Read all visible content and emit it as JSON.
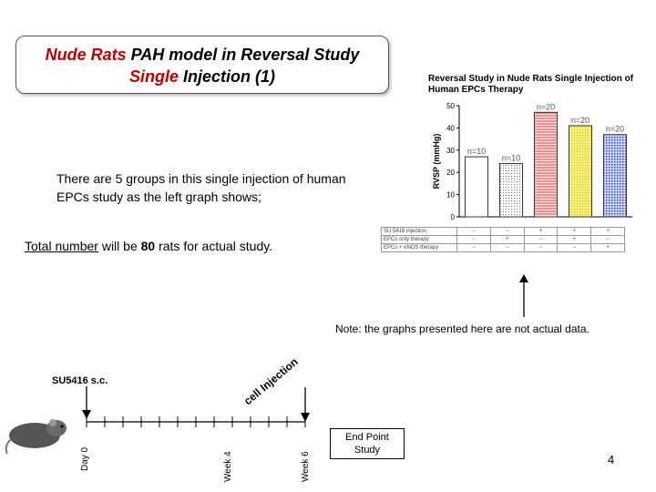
{
  "title": {
    "line1_red": "Nude Rats",
    "line1_rest": " PAH model in Reversal Study",
    "line2_red": "Single",
    "line2_rest": " Injection (1)"
  },
  "intro_text": "There are 5 groups in this single injection of human EPCs study as the left graph shows;",
  "total": {
    "underlined": "Total number",
    "middle": " will be ",
    "number": "80",
    "rest": " rats for actual study."
  },
  "note": "Note: the graphs presented here are not actual data.",
  "timeline": {
    "su_label": "SU5416 s.c.",
    "cell_injection": "cell Injection",
    "day0": "Day 0",
    "week4": "Week 4",
    "week6": "Week 6",
    "endpoint_line1": "End Point",
    "endpoint_line2": "Study"
  },
  "page_number": "4",
  "chart_data": {
    "type": "bar",
    "title": "Reversal Study in Nude Rats Single Injection of Human EPCs Therapy",
    "ylabel": "RVSP (mmHg)",
    "ylim": [
      0,
      50
    ],
    "yticks": [
      0,
      10,
      20,
      30,
      40,
      50
    ],
    "values": [
      27,
      24,
      47,
      41,
      37
    ],
    "bar_labels": [
      "n=10",
      "n=10",
      "n=20",
      "n=20",
      "n=20"
    ],
    "bar_styles": [
      "white",
      "dotted",
      "red-lines",
      "yellow",
      "blue-check"
    ],
    "table_rows": [
      {
        "label": "SU 5416 injection",
        "cells": [
          "−",
          "−",
          "+",
          "+",
          "+"
        ]
      },
      {
        "label": "EPCs only therapy",
        "cells": [
          "−",
          "+",
          "−",
          "+",
          "−"
        ]
      },
      {
        "label": "EPCs + eNOS therapy",
        "cells": [
          "−",
          "−",
          "−",
          "−",
          "+"
        ]
      }
    ]
  }
}
